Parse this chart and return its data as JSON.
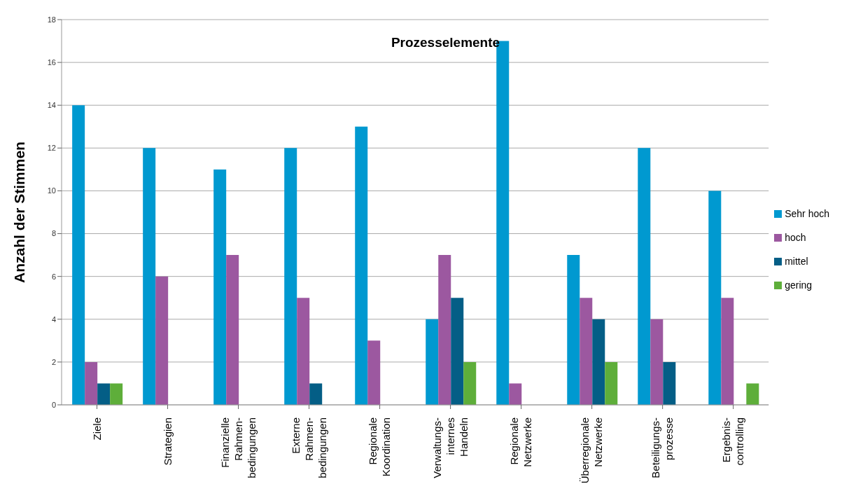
{
  "chart_data": {
    "type": "bar",
    "title": "Prozesselemente",
    "ylabel": "Anzahl der Stimmen",
    "categories": [
      "Ziele",
      "Strategien",
      "Finanzielle\nRahmen-\nbedingungen",
      "Externe\nRahmen-\nbedingungen",
      "Regionale\nKoordination",
      "Verwaltungs-\ninternes\nHandeln",
      "Regionale\nNetzwerke",
      "Überregionale\nNetzwerke",
      "Beteiligungs-\nprozesse",
      "Ergebnis-\ncontrolling"
    ],
    "series": [
      {
        "name": "Sehr hoch",
        "color": "#0099d0",
        "values": [
          14,
          12,
          11,
          12,
          13,
          4,
          17,
          7,
          12,
          10
        ]
      },
      {
        "name": "hoch",
        "color": "#9c58a0",
        "values": [
          2,
          6,
          7,
          5,
          3,
          7,
          1,
          5,
          4,
          5
        ]
      },
      {
        "name": "mittel",
        "color": "#045e86",
        "values": [
          1,
          0,
          0,
          1,
          0,
          5,
          0,
          4,
          2,
          0
        ]
      },
      {
        "name": "gering",
        "color": "#5eae3a",
        "values": [
          1,
          0,
          0,
          0,
          0,
          2,
          0,
          2,
          0,
          1
        ]
      }
    ],
    "ylim": [
      0,
      18
    ],
    "yticks": [
      0,
      2,
      4,
      6,
      8,
      10,
      12,
      14,
      16,
      18
    ],
    "grid": "y",
    "legend": "right"
  }
}
